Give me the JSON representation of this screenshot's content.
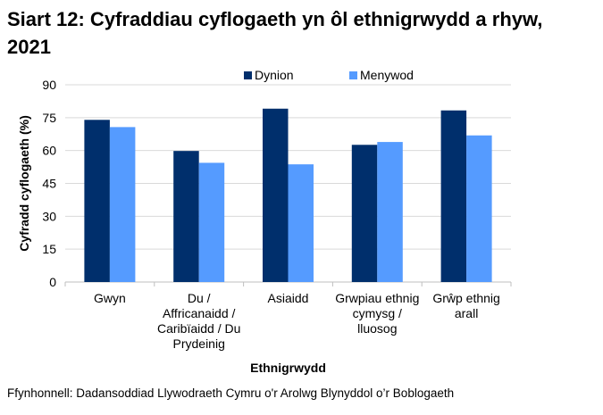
{
  "title": "Siart 12: Cyfraddiau cyflogaeth yn ôl ethnigrwydd a rhyw, 2021",
  "source": "Ffynhonnell: Dadansoddiad Llywodraeth Cymru o'r Arolwg Blynyddol o’r Boblogaeth",
  "chart_data": {
    "type": "bar",
    "title": "Siart 12: Cyfraddiau cyflogaeth yn ôl ethnigrwydd a rhyw, 2021",
    "xlabel": "Ethnigrwydd",
    "ylabel": "Cyfradd cyflogaeth (%)",
    "ylim": [
      0,
      90
    ],
    "yticks": [
      0,
      15,
      30,
      45,
      60,
      75,
      90
    ],
    "grid": true,
    "legend": "top",
    "categories": [
      [
        "Gwyn"
      ],
      [
        "Du /",
        "Affricanaidd /",
        "Caribïaidd / Du",
        "Prydeinig"
      ],
      [
        "Asiaidd"
      ],
      [
        "Grwpiau ethnig",
        "cymysg /",
        "lluosog"
      ],
      [
        "Grŵp ethnig",
        "arall"
      ]
    ],
    "series": [
      {
        "name": "Dynion",
        "color": "#002f6c",
        "values": [
          74.0,
          59.8,
          79.1,
          62.6,
          78.3
        ]
      },
      {
        "name": "Menywod",
        "color": "#559bff",
        "values": [
          70.7,
          54.4,
          53.7,
          63.9,
          66.9
        ]
      }
    ]
  }
}
